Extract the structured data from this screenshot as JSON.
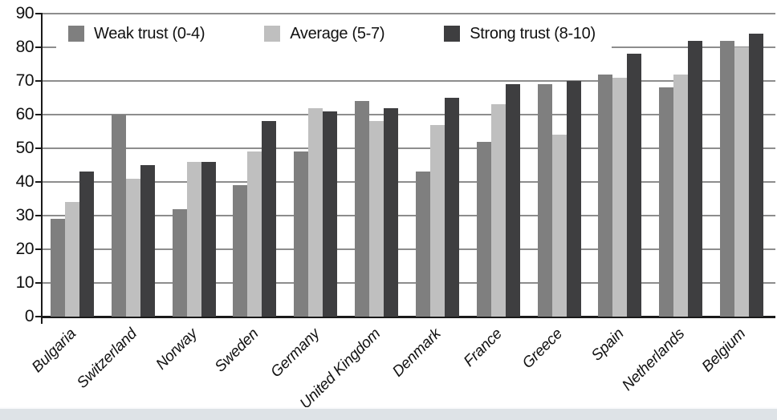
{
  "chart_data": {
    "type": "bar",
    "title": "",
    "xlabel": "",
    "ylabel": "",
    "categories": [
      "Bulgaria",
      "Switzerland",
      "Norway",
      "Sweden",
      "Germany",
      "United Kingdom",
      "Denmark",
      "France",
      "Greece",
      "Spain",
      "Netherlands",
      "Belgium"
    ],
    "series": [
      {
        "name": "Weak trust (0-4)",
        "color": "#7f7f7f",
        "values": [
          29,
          60,
          32,
          39,
          49,
          64,
          43,
          52,
          69,
          72,
          68,
          82
        ]
      },
      {
        "name": "Average (5-7)",
        "color": "#bfbfbf",
        "values": [
          34,
          41,
          46,
          49,
          62,
          58,
          57,
          63,
          54,
          71,
          72,
          80
        ]
      },
      {
        "name": "Strong trust (8-10)",
        "color": "#3e3e40",
        "values": [
          43,
          45,
          46,
          58,
          61,
          62,
          65,
          69,
          70,
          78,
          82,
          84
        ]
      }
    ],
    "ylim": [
      0,
      90
    ],
    "yticks": [
      0,
      10,
      20,
      30,
      40,
      50,
      60,
      70,
      80,
      90
    ],
    "grid": "horizontal",
    "gridline_color": "#8d8d8d",
    "axis_color": "#1a1a1a",
    "legend_position": "top-inside",
    "x_tick_label_style": "italic, rotated 45deg"
  },
  "window": {
    "bottom_strip_color": "#dee3e7"
  }
}
